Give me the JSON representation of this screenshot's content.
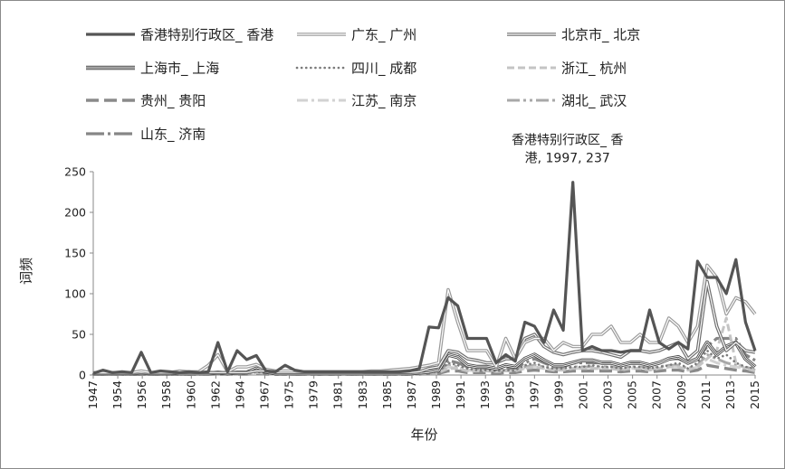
{
  "chart_data": {
    "type": "line",
    "title": "",
    "xlabel": "年份",
    "ylabel": "词频",
    "ylim": [
      0,
      250
    ],
    "yticks": [
      0,
      50,
      100,
      150,
      200,
      250
    ],
    "x": [
      1947,
      1948,
      1949,
      1950,
      1951,
      1952,
      1953,
      1954,
      1955,
      1956,
      1957,
      1958,
      1959,
      1960,
      1961,
      1962,
      1963,
      1964,
      1965,
      1966,
      1967,
      1968,
      1969,
      1970,
      1971,
      1972,
      1973,
      1974,
      1975,
      1976,
      1977,
      1978,
      1979,
      1980,
      1981,
      1982,
      1983,
      1984,
      1985,
      1986,
      1987,
      1988,
      1989,
      1990,
      1991,
      1992,
      1993,
      1994,
      1995,
      1996,
      1997,
      1998,
      1999,
      2000,
      2001,
      2002,
      2003,
      2004,
      2005,
      2006,
      2007,
      2008,
      2009,
      2010,
      2011,
      2012,
      2013,
      2014,
      2015,
      2016
    ],
    "x_tick_labels": [
      "1947",
      "1954",
      "1956",
      "1958",
      "1960",
      "1962",
      "1964",
      "1967",
      "1975",
      "1979",
      "1981",
      "1983",
      "1985",
      "1987",
      "1989",
      "1991",
      "1993",
      "1995",
      "1997",
      "1999",
      "2001",
      "2003",
      "2005",
      "2007",
      "2009",
      "2011",
      "2013",
      "2015"
    ],
    "grid": false,
    "legend_position": "top",
    "annotation": {
      "text": "香港特别行政区_ 香港, 1997, 237",
      "lines": [
        "香港特别行政区_ 香",
        "港, 1997, 237"
      ],
      "x": 1997,
      "y": 237
    },
    "series": [
      {
        "name": "香港特别行政区_ 香港",
        "color": "#555555",
        "style": "thick",
        "values": [
          2,
          6,
          3,
          4,
          3,
          28,
          3,
          5,
          4,
          3,
          4,
          3,
          4,
          40,
          4,
          30,
          19,
          24,
          5,
          4,
          12,
          6,
          4,
          4,
          4,
          4,
          4,
          4,
          4,
          4,
          4,
          4,
          4,
          5,
          8,
          59,
          58,
          95,
          85,
          45,
          45,
          45,
          15,
          25,
          17,
          65,
          60,
          40,
          80,
          55,
          237,
          30,
          35,
          30,
          30,
          28,
          30,
          30,
          80,
          40,
          32,
          40,
          32,
          140,
          120,
          120,
          100,
          142,
          65,
          30
        ]
      },
      {
        "name": "广东_ 广州",
        "color": "#9a9a9a",
        "style": "double",
        "values": [
          3,
          3,
          3,
          3,
          3,
          5,
          3,
          3,
          3,
          5,
          4,
          4,
          12,
          25,
          4,
          10,
          10,
          13,
          7,
          5,
          5,
          5,
          4,
          4,
          4,
          4,
          4,
          4,
          4,
          5,
          5,
          6,
          7,
          8,
          10,
          12,
          15,
          105,
          65,
          30,
          30,
          30,
          10,
          45,
          20,
          40,
          45,
          45,
          30,
          40,
          35,
          35,
          50,
          50,
          60,
          40,
          40,
          50,
          40,
          40,
          70,
          60,
          40,
          60,
          135,
          120,
          75,
          95,
          90,
          75
        ]
      },
      {
        "name": "北京市_ 北京",
        "color": "#6e6e6e",
        "style": "double",
        "values": [
          2,
          2,
          2,
          2,
          2,
          3,
          2,
          2,
          2,
          3,
          3,
          3,
          3,
          3,
          3,
          3,
          3,
          5,
          5,
          3,
          3,
          3,
          3,
          3,
          3,
          3,
          3,
          3,
          3,
          3,
          3,
          3,
          3,
          3,
          4,
          8,
          10,
          30,
          28,
          20,
          18,
          15,
          15,
          20,
          20,
          45,
          50,
          35,
          28,
          25,
          28,
          30,
          30,
          28,
          25,
          22,
          30,
          30,
          28,
          30,
          35,
          40,
          20,
          30,
          115,
          60,
          30,
          40,
          30,
          28
        ]
      },
      {
        "name": "上海市_ 上海",
        "color": "#444444",
        "style": "triple",
        "values": [
          2,
          2,
          2,
          2,
          2,
          2,
          2,
          2,
          2,
          2,
          2,
          2,
          2,
          3,
          2,
          3,
          3,
          8,
          4,
          2,
          2,
          2,
          2,
          2,
          2,
          2,
          2,
          2,
          2,
          2,
          2,
          2,
          2,
          2,
          3,
          4,
          6,
          25,
          22,
          12,
          10,
          10,
          8,
          12,
          10,
          20,
          25,
          18,
          12,
          12,
          15,
          18,
          18,
          15,
          15,
          12,
          15,
          15,
          12,
          15,
          20,
          22,
          15,
          20,
          40,
          25,
          35,
          40,
          20,
          10
        ]
      },
      {
        "name": "四川_ 成都",
        "color": "#7a7a7a",
        "style": "dotted",
        "values": [
          1,
          1,
          1,
          1,
          1,
          1,
          1,
          1,
          1,
          1,
          1,
          1,
          1,
          2,
          1,
          2,
          2,
          4,
          2,
          1,
          1,
          1,
          1,
          1,
          1,
          1,
          1,
          1,
          1,
          1,
          1,
          1,
          1,
          1,
          2,
          3,
          4,
          15,
          12,
          8,
          6,
          6,
          5,
          6,
          6,
          12,
          15,
          10,
          8,
          8,
          10,
          10,
          12,
          10,
          10,
          8,
          10,
          10,
          8,
          10,
          12,
          15,
          8,
          15,
          30,
          20,
          25,
          15,
          10,
          8
        ]
      },
      {
        "name": "浙江_ 杭州",
        "color": "#c4c4c4",
        "style": "dashed",
        "values": [
          1,
          1,
          1,
          1,
          1,
          1,
          1,
          1,
          1,
          1,
          1,
          1,
          1,
          2,
          1,
          2,
          2,
          3,
          2,
          1,
          1,
          1,
          1,
          1,
          1,
          1,
          1,
          1,
          1,
          1,
          1,
          1,
          1,
          1,
          2,
          2,
          3,
          8,
          8,
          5,
          5,
          5,
          4,
          5,
          5,
          8,
          10,
          8,
          6,
          6,
          8,
          8,
          8,
          8,
          8,
          6,
          8,
          8,
          6,
          8,
          10,
          10,
          6,
          10,
          20,
          30,
          70,
          15,
          8,
          5
        ]
      },
      {
        "name": "贵州_ 贵阳",
        "color": "#8a8a8a",
        "style": "longdash",
        "values": [
          1,
          1,
          1,
          1,
          1,
          1,
          1,
          1,
          1,
          1,
          1,
          1,
          1,
          1,
          1,
          1,
          1,
          2,
          1,
          1,
          1,
          1,
          1,
          1,
          1,
          1,
          1,
          1,
          1,
          1,
          1,
          1,
          1,
          1,
          1,
          2,
          2,
          5,
          5,
          3,
          3,
          3,
          2,
          3,
          3,
          5,
          6,
          5,
          4,
          4,
          5,
          5,
          5,
          5,
          5,
          4,
          5,
          5,
          4,
          5,
          6,
          6,
          4,
          6,
          12,
          10,
          8,
          6,
          5,
          3
        ]
      },
      {
        "name": "江苏_ 南京",
        "color": "#d2d2d2",
        "style": "dashdot",
        "values": [
          1,
          1,
          1,
          1,
          1,
          1,
          1,
          1,
          1,
          1,
          1,
          1,
          1,
          2,
          1,
          2,
          2,
          3,
          2,
          1,
          1,
          1,
          1,
          1,
          1,
          1,
          1,
          1,
          1,
          1,
          1,
          1,
          1,
          1,
          2,
          2,
          3,
          10,
          8,
          6,
          5,
          5,
          4,
          5,
          5,
          8,
          10,
          8,
          6,
          6,
          8,
          8,
          8,
          8,
          8,
          6,
          8,
          8,
          6,
          8,
          10,
          10,
          6,
          10,
          20,
          15,
          12,
          10,
          8,
          5
        ]
      },
      {
        "name": "湖北_ 武汉",
        "color": "#a8a8a8",
        "style": "dashdotdot",
        "values": [
          1,
          1,
          1,
          1,
          1,
          1,
          1,
          1,
          1,
          1,
          1,
          1,
          1,
          2,
          1,
          2,
          2,
          3,
          2,
          1,
          1,
          1,
          1,
          1,
          1,
          1,
          1,
          1,
          1,
          1,
          1,
          1,
          1,
          1,
          2,
          2,
          3,
          12,
          10,
          6,
          6,
          6,
          5,
          6,
          6,
          10,
          12,
          10,
          8,
          8,
          10,
          10,
          10,
          10,
          10,
          8,
          10,
          10,
          8,
          10,
          12,
          12,
          8,
          12,
          25,
          20,
          15,
          12,
          10,
          6
        ]
      },
      {
        "name": "山东_ 济南",
        "color": "#868686",
        "style": "dashdot-long",
        "values": [
          1,
          1,
          1,
          1,
          1,
          1,
          1,
          1,
          1,
          1,
          1,
          1,
          1,
          3,
          1,
          3,
          3,
          5,
          3,
          1,
          1,
          1,
          1,
          1,
          1,
          1,
          1,
          1,
          1,
          1,
          1,
          1,
          1,
          1,
          2,
          3,
          4,
          18,
          15,
          10,
          10,
          8,
          6,
          8,
          8,
          15,
          20,
          15,
          10,
          10,
          15,
          15,
          15,
          15,
          15,
          12,
          15,
          15,
          12,
          15,
          20,
          20,
          15,
          20,
          35,
          45,
          45,
          45,
          25,
          18
        ]
      }
    ]
  }
}
